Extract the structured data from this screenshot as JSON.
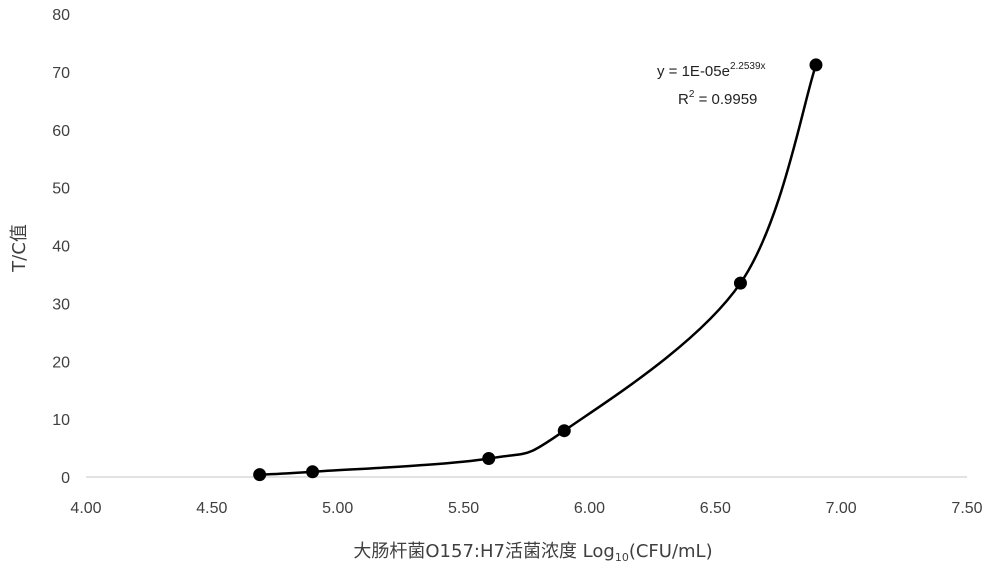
{
  "chart_data": {
    "type": "scatter",
    "xlabel_main": "大肠杆菌O157:H7活菌浓度 Log",
    "xlabel_sub": "10",
    "xlabel_tail": "(CFU/mL)",
    "ylabel": "T/C值",
    "xlim": [
      4.0,
      7.5
    ],
    "ylim": [
      0,
      80
    ],
    "x_ticks": [
      "4.00",
      "4.50",
      "5.00",
      "5.50",
      "6.00",
      "6.50",
      "7.00",
      "7.50"
    ],
    "y_ticks": [
      "0",
      "10",
      "20",
      "30",
      "40",
      "50",
      "60",
      "70",
      "80"
    ],
    "grid": false,
    "series": [
      {
        "points": [
          {
            "x": 4.69,
            "y": 0.4
          },
          {
            "x": 4.9,
            "y": 0.9
          },
          {
            "x": 5.6,
            "y": 3.2
          },
          {
            "x": 5.9,
            "y": 8.0
          },
          {
            "x": 6.6,
            "y": 33.5
          },
          {
            "x": 6.9,
            "y": 71.2
          }
        ]
      }
    ],
    "trendline": {
      "type": "exponential",
      "equation_prefix": "y = 1E-05e",
      "equation_exponent": "2.2539x",
      "r2_prefix": "R",
      "r2_sup": "2",
      "r2_value": " = 0.9959"
    }
  },
  "colors": {
    "marker": "#000000",
    "line": "#000000",
    "axis": "#d9d9d9",
    "text": "#404040"
  }
}
